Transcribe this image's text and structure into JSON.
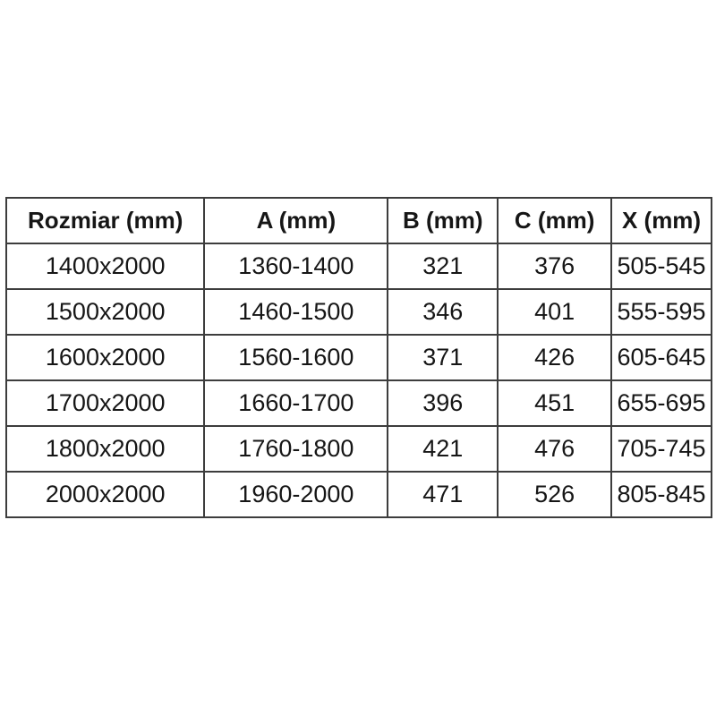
{
  "page": {
    "background": "#ffffff"
  },
  "table": {
    "border_color": "#3d3d3d",
    "text_color": "#161616",
    "headers": [
      "Rozmiar (mm)",
      "A (mm)",
      "B (mm)",
      "C (mm)",
      "X (mm)"
    ],
    "rows": [
      [
        "1400x2000",
        "1360-1400",
        "321",
        "376",
        "505-545"
      ],
      [
        "1500x2000",
        "1460-1500",
        "346",
        "401",
        "555-595"
      ],
      [
        "1600x2000",
        "1560-1600",
        "371",
        "426",
        "605-645"
      ],
      [
        "1700x2000",
        "1660-1700",
        "396",
        "451",
        "655-695"
      ],
      [
        "1800x2000",
        "1760-1800",
        "421",
        "476",
        "705-745"
      ],
      [
        "2000x2000",
        "1960-2000",
        "471",
        "526",
        "805-845"
      ]
    ]
  },
  "chart_data": {
    "type": "table",
    "title": "",
    "columns": [
      "Rozmiar (mm)",
      "A (mm)",
      "B (mm)",
      "C (mm)",
      "X (mm)"
    ],
    "rows": [
      [
        "1400x2000",
        "1360-1400",
        "321",
        "376",
        "505-545"
      ],
      [
        "1500x2000",
        "1460-1500",
        "346",
        "401",
        "555-595"
      ],
      [
        "1600x2000",
        "1560-1600",
        "371",
        "426",
        "605-645"
      ],
      [
        "1700x2000",
        "1660-1700",
        "396",
        "451",
        "655-695"
      ],
      [
        "1800x2000",
        "1760-1800",
        "421",
        "476",
        "705-745"
      ],
      [
        "2000x2000",
        "1960-2000",
        "471",
        "526",
        "805-845"
      ]
    ]
  }
}
